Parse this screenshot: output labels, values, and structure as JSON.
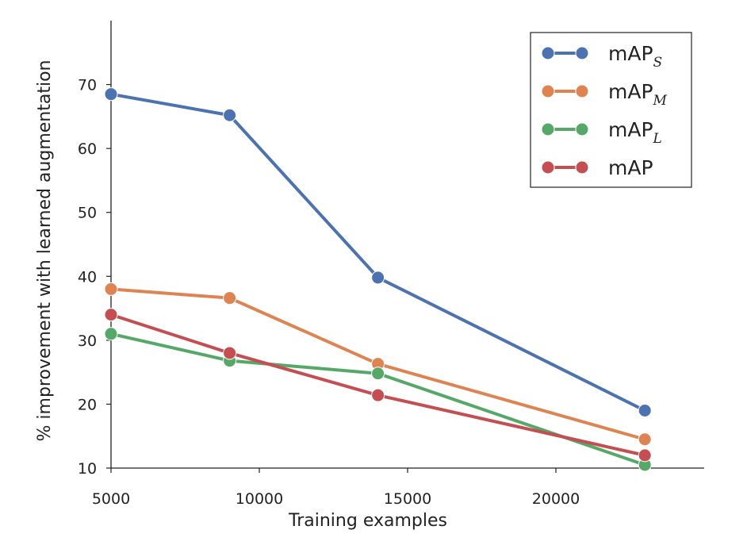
{
  "chart_data": {
    "type": "line",
    "title": "",
    "xlabel": "Training examples",
    "ylabel": "% improvement with learned augmentation",
    "x": [
      5000,
      9000,
      14000,
      23000
    ],
    "xlim": [
      5000,
      25000
    ],
    "ylim": [
      10,
      80
    ],
    "xticks": [
      "5000",
      "10000",
      "15000",
      "20000"
    ],
    "yticks": [
      "10",
      "20",
      "30",
      "40",
      "50",
      "60",
      "70"
    ],
    "grid": false,
    "legend_position": "top-right",
    "series": [
      {
        "name": "mAP",
        "subscript": "S",
        "color": "#4c72b0",
        "values": [
          68.5,
          65.2,
          39.8,
          19.0
        ]
      },
      {
        "name": "mAP",
        "subscript": "M",
        "color": "#dd8452",
        "values": [
          38.0,
          36.6,
          26.3,
          14.5
        ]
      },
      {
        "name": "mAP",
        "subscript": "L",
        "color": "#55a868",
        "values": [
          31.0,
          26.8,
          24.8,
          10.5
        ]
      },
      {
        "name": "mAP",
        "subscript": "",
        "color": "#c44e52",
        "values": [
          34.0,
          28.0,
          21.4,
          12.0
        ]
      }
    ]
  }
}
